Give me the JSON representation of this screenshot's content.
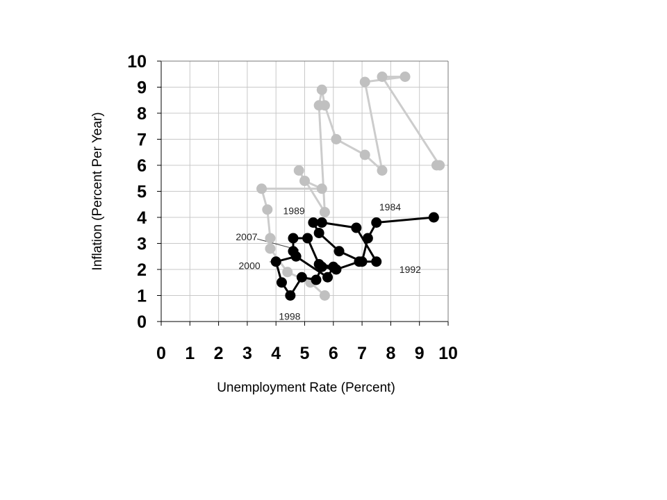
{
  "chart_data": {
    "type": "scatter",
    "xlabel": "Unemployment Rate (Percent)",
    "ylabel": "Inflation (Percent Per Year)",
    "xlim": [
      0,
      10
    ],
    "ylim": [
      0,
      10
    ],
    "x_ticks": [
      "0",
      "1",
      "2",
      "3",
      "4",
      "5",
      "6",
      "7",
      "8",
      "9",
      "10"
    ],
    "y_ticks": [
      "0",
      "1",
      "2",
      "3",
      "4",
      "5",
      "6",
      "7",
      "8",
      "9",
      "10"
    ],
    "grid": true,
    "series": [
      {
        "color": "#cccccc",
        "marker_color": "#c0c0c0",
        "x": [
          5.7,
          5.2,
          4.4,
          3.8,
          3.8,
          3.7,
          3.5,
          5.6,
          5.0,
          4.8,
          5.7,
          5.5,
          5.6,
          5.7,
          6.1,
          7.1,
          7.7,
          7.1,
          8.5,
          7.7,
          9.7,
          9.6
        ],
        "y": [
          1.0,
          1.5,
          1.9,
          2.8,
          3.2,
          4.3,
          5.1,
          5.1,
          5.4,
          5.8,
          4.2,
          8.3,
          8.9,
          8.3,
          7.0,
          6.4,
          5.8,
          9.2,
          9.4,
          9.4,
          6.0,
          6.0
        ]
      },
      {
        "color": "#000000",
        "marker_color": "#000000",
        "x": [
          9.5,
          7.5,
          7.2,
          7.0,
          6.2,
          5.5,
          5.3,
          5.6,
          6.8,
          7.5,
          6.9,
          6.1,
          5.6,
          5.4,
          4.9,
          4.5,
          4.2,
          4.0,
          4.7,
          5.8,
          6.0,
          5.5,
          5.1,
          4.6,
          4.6
        ],
        "y": [
          4.0,
          3.8,
          3.2,
          2.3,
          2.7,
          3.4,
          3.8,
          3.8,
          3.6,
          2.3,
          2.3,
          2.0,
          2.1,
          1.6,
          1.7,
          1.0,
          1.5,
          2.3,
          2.5,
          1.7,
          2.1,
          2.2,
          3.2,
          3.2,
          2.7
        ]
      }
    ],
    "annotations": [
      {
        "text": "1984",
        "x": 7.6,
        "y": 4.4
      },
      {
        "text": "1989",
        "x": 4.25,
        "y": 4.25
      },
      {
        "text": "2007",
        "x": 2.6,
        "y": 3.25
      },
      {
        "text": "2000",
        "x": 2.7,
        "y": 2.15
      },
      {
        "text": "1992",
        "x": 8.3,
        "y": 2.0
      },
      {
        "text": "1998",
        "x": 4.1,
        "y": 0.2
      }
    ]
  }
}
